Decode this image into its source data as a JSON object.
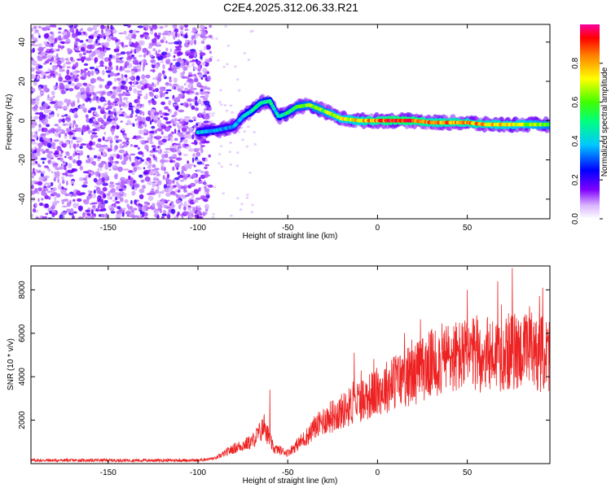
{
  "title": "C2E4.2025.312.06.33.R21",
  "chart_data": [
    {
      "type": "heatmap",
      "xlabel": "Height of straight line (km)",
      "ylabel": "Frequency (Hz)",
      "xlim": [
        -193,
        96
      ],
      "ylim": [
        -50,
        49
      ],
      "xticks": [
        -150,
        -100,
        -50,
        0,
        50
      ],
      "xtick_labels": [
        "-150",
        "-100",
        "-50",
        "0",
        "50"
      ],
      "yticks": [
        -40,
        -20,
        0,
        20,
        40
      ],
      "ytick_labels": [
        "-40",
        "-20",
        "0",
        "20",
        "40"
      ],
      "colorbar": {
        "label": "Normalized spectral amplitude",
        "range": [
          0,
          1
        ],
        "ticks": [
          0.0,
          0.2,
          0.4,
          0.6,
          0.8
        ],
        "tick_labels": [
          "0.0",
          "0.2",
          "0.4",
          "0.6",
          "0.8"
        ]
      },
      "noise_region_x": [
        -193,
        -93
      ],
      "ridge": [
        {
          "x": -100,
          "y": -6,
          "amp": 0.4
        },
        {
          "x": -90,
          "y": -5,
          "amp": 0.38
        },
        {
          "x": -80,
          "y": -3,
          "amp": 0.35
        },
        {
          "x": -75,
          "y": 2,
          "amp": 0.42
        },
        {
          "x": -70,
          "y": 5,
          "amp": 0.45
        },
        {
          "x": -65,
          "y": 9,
          "amp": 0.5
        },
        {
          "x": -60,
          "y": 10,
          "amp": 0.48
        },
        {
          "x": -57,
          "y": 5,
          "amp": 0.4
        },
        {
          "x": -55,
          "y": 2,
          "amp": 0.45
        },
        {
          "x": -50,
          "y": 4,
          "amp": 0.5
        },
        {
          "x": -45,
          "y": 7,
          "amp": 0.55
        },
        {
          "x": -38,
          "y": 8,
          "amp": 0.6
        },
        {
          "x": -30,
          "y": 5,
          "amp": 0.62
        },
        {
          "x": -20,
          "y": 1,
          "amp": 0.7
        },
        {
          "x": -10,
          "y": 0,
          "amp": 0.75
        },
        {
          "x": 0,
          "y": 0,
          "amp": 0.85
        },
        {
          "x": 10,
          "y": 0,
          "amp": 0.92
        },
        {
          "x": 20,
          "y": 0,
          "amp": 0.9
        },
        {
          "x": 30,
          "y": -1,
          "amp": 0.8
        },
        {
          "x": 40,
          "y": -1,
          "amp": 0.82
        },
        {
          "x": 50,
          "y": -1,
          "amp": 0.8
        },
        {
          "x": 60,
          "y": -2,
          "amp": 0.78
        },
        {
          "x": 70,
          "y": -2,
          "amp": 0.75
        },
        {
          "x": 80,
          "y": -2,
          "amp": 0.7
        },
        {
          "x": 90,
          "y": -2,
          "amp": 0.65
        },
        {
          "x": 96,
          "y": -2,
          "amp": 0.6
        }
      ]
    },
    {
      "type": "line",
      "xlabel": "Height of straight line (km)",
      "ylabel": "SNR (10 * v/v)",
      "xlim": [
        -193,
        96
      ],
      "ylim": [
        0,
        9100
      ],
      "xticks": [
        -150,
        -100,
        -50,
        0,
        50
      ],
      "xtick_labels": [
        "-150",
        "-100",
        "-50",
        "0",
        "50"
      ],
      "yticks": [
        2000,
        4000,
        6000,
        8000
      ],
      "ytick_labels": [
        "2000",
        "4000",
        "6000",
        "8000"
      ],
      "color": "#ee2222",
      "series_trend": [
        {
          "x": -193,
          "snr": 150
        },
        {
          "x": -100,
          "snr": 150
        },
        {
          "x": -90,
          "snr": 250
        },
        {
          "x": -80,
          "snr": 700
        },
        {
          "x": -70,
          "snr": 1000
        },
        {
          "x": -63,
          "snr": 1700
        },
        {
          "x": -58,
          "snr": 700
        },
        {
          "x": -50,
          "snr": 500
        },
        {
          "x": -40,
          "snr": 1200
        },
        {
          "x": -30,
          "snr": 2000
        },
        {
          "x": -20,
          "snr": 2400
        },
        {
          "x": -10,
          "snr": 2900
        },
        {
          "x": 0,
          "snr": 3300
        },
        {
          "x": 10,
          "snr": 3800
        },
        {
          "x": 20,
          "snr": 4100
        },
        {
          "x": 30,
          "snr": 4600
        },
        {
          "x": 40,
          "snr": 4900
        },
        {
          "x": 60,
          "snr": 5000
        },
        {
          "x": 80,
          "snr": 5200
        },
        {
          "x": 96,
          "snr": 5000
        }
      ],
      "notable_peaks": [
        {
          "x": -60,
          "snr": 3400
        },
        {
          "x": -13,
          "snr": 5100
        },
        {
          "x": 50,
          "snr": 8000
        },
        {
          "x": 67,
          "snr": 8400
        },
        {
          "x": 75,
          "snr": 9000
        },
        {
          "x": 92,
          "snr": 8100
        }
      ]
    }
  ]
}
